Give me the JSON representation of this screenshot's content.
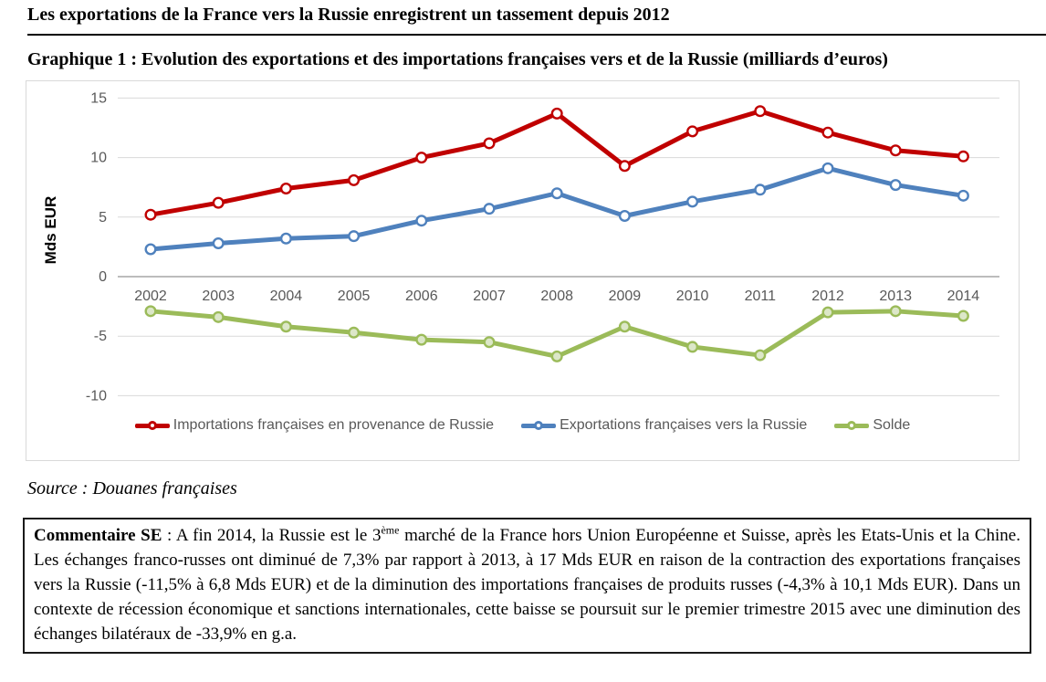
{
  "page": {
    "title": "Les exportations de la France vers la Russie enregistrent un tassement depuis 2012",
    "graph_caption": "Graphique 1 : Evolution des exportations et des importations françaises vers et de la Russie (milliards d’euros)",
    "source": "Source : Douanes françaises"
  },
  "chart_data": {
    "type": "line",
    "title": "",
    "xlabel": "",
    "ylabel": "Mds EUR",
    "ylim": [
      -10,
      15
    ],
    "yticks": [
      15,
      10,
      5,
      0,
      -5,
      -10
    ],
    "grid": true,
    "legend_position": "bottom",
    "categories": [
      "2002",
      "2003",
      "2004",
      "2005",
      "2006",
      "2007",
      "2008",
      "2009",
      "2010",
      "2011",
      "2012",
      "2013",
      "2014"
    ],
    "series": [
      {
        "name": "Importations françaises en provenance de Russie",
        "color": "#C00000",
        "marker_fill": "#FFFFFF",
        "values": [
          5.2,
          6.2,
          7.4,
          8.1,
          10.0,
          11.2,
          13.7,
          9.3,
          12.2,
          13.9,
          12.1,
          10.6,
          10.1
        ]
      },
      {
        "name": "Exportations françaises vers la Russie",
        "color": "#4F81BD",
        "marker_fill": "#FFFFFF",
        "values": [
          2.3,
          2.8,
          3.2,
          3.4,
          4.7,
          5.7,
          7.0,
          5.1,
          6.3,
          7.3,
          9.1,
          7.7,
          6.8
        ]
      },
      {
        "name": "Solde",
        "color": "#9BBB59",
        "marker_fill": "#DCE7C8",
        "values": [
          -2.9,
          -3.4,
          -4.2,
          -4.7,
          -5.3,
          -5.5,
          -6.7,
          -4.2,
          -5.9,
          -6.6,
          -3.0,
          -2.9,
          -3.3
        ]
      }
    ]
  },
  "colors": {
    "axis_text": "#595959",
    "gridline": "#D9D9D9",
    "zero_axis": "#A6A6A6",
    "ylabel_text": "#000000"
  },
  "commentary": {
    "label": "Commentaire SE",
    "separator": " : ",
    "text_before_sup": "A fin 2014, la Russie est le 3",
    "sup": "ème",
    "text_after_sup": " marché de la France hors Union Européenne et Suisse, après les Etats-Unis et la Chine. Les échanges franco-russes ont diminué de 7,3% par rapport à 2013, à 17 Mds EUR en raison de la contraction des exportations françaises vers la Russie (-11,5% à 6,8 Mds EUR) et de la diminution des importations françaises de produits russes (-4,3% à 10,1 Mds EUR). Dans un contexte de récession économique et sanctions internationales, cette baisse se poursuit sur le premier trimestre 2015 avec une diminution des échanges bilatéraux de -33,9% en g.a."
  }
}
